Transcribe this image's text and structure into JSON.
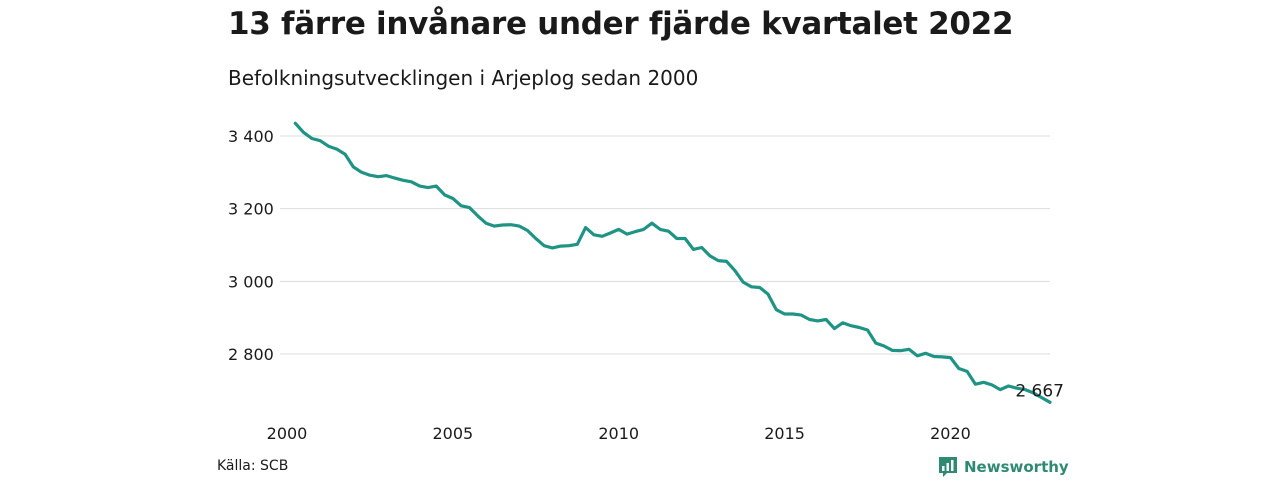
{
  "title": "13 färre invånare under fjärde kvartalet 2022",
  "subtitle": "Befolkningsutvecklingen i Arjeplog sedan 2000",
  "source": "Källa: SCB",
  "brand": "Newsworthy",
  "colors": {
    "line": "#1f9384",
    "grid": "#dddddd",
    "brand": "#2f8a74"
  },
  "chart_data": {
    "type": "line",
    "ylim": [
      2660,
      3440
    ],
    "xlim": [
      2000,
      2023.0
    ],
    "y_ticks": [
      {
        "value": 2800,
        "label": "2 800"
      },
      {
        "value": 3000,
        "label": "3 000"
      },
      {
        "value": 3200,
        "label": "3 200"
      },
      {
        "value": 3400,
        "label": "3 400"
      }
    ],
    "x_ticks": [
      {
        "value": 2000,
        "label": "2000"
      },
      {
        "value": 2005,
        "label": "2005"
      },
      {
        "value": 2010,
        "label": "2010"
      },
      {
        "value": 2015,
        "label": "2015"
      },
      {
        "value": 2020,
        "label": "2020"
      }
    ],
    "grid": true,
    "end_label": "2 667",
    "series": [
      {
        "x": [
          2000.25,
          2000.5,
          2000.75,
          2001.0,
          2001.25,
          2001.5,
          2001.75,
          2002.0,
          2002.25,
          2002.5,
          2002.75,
          2003.0,
          2003.25,
          2003.5,
          2003.75,
          2004.0,
          2004.25,
          2004.5,
          2004.75,
          2005.0,
          2005.25,
          2005.5,
          2005.75,
          2006.0,
          2006.25,
          2006.5,
          2006.75,
          2007.0,
          2007.25,
          2007.5,
          2007.75,
          2008.0,
          2008.25,
          2008.5,
          2008.75,
          2009.0,
          2009.25,
          2009.5,
          2009.75,
          2010.0,
          2010.25,
          2010.5,
          2010.75,
          2011.0,
          2011.25,
          2011.5,
          2011.75,
          2012.0,
          2012.25,
          2012.5,
          2012.75,
          2013.0,
          2013.25,
          2013.5,
          2013.75,
          2014.0,
          2014.25,
          2014.5,
          2014.75,
          2015.0,
          2015.25,
          2015.5,
          2015.75,
          2016.0,
          2016.25,
          2016.5,
          2016.75,
          2017.0,
          2017.25,
          2017.5,
          2017.75,
          2018.0,
          2018.25,
          2018.5,
          2018.75,
          2019.0,
          2019.25,
          2019.5,
          2019.75,
          2020.0,
          2020.25,
          2020.5,
          2020.75,
          2021.0,
          2021.25,
          2021.5,
          2021.75,
          2022.0,
          2022.25,
          2022.5,
          2022.75,
          2023.0
        ],
        "values": [
          3435,
          3410,
          3393,
          3387,
          3372,
          3364,
          3350,
          3315,
          3300,
          3292,
          3288,
          3291,
          3284,
          3278,
          3274,
          3262,
          3258,
          3262,
          3238,
          3228,
          3208,
          3203,
          3180,
          3160,
          3152,
          3155,
          3156,
          3152,
          3140,
          3118,
          3098,
          3092,
          3097,
          3098,
          3102,
          3148,
          3128,
          3124,
          3133,
          3143,
          3130,
          3137,
          3143,
          3160,
          3143,
          3138,
          3118,
          3118,
          3088,
          3093,
          3070,
          3057,
          3055,
          3030,
          2998,
          2985,
          2983,
          2965,
          2922,
          2910,
          2910,
          2907,
          2895,
          2891,
          2895,
          2870,
          2886,
          2878,
          2873,
          2866,
          2830,
          2822,
          2810,
          2809,
          2813,
          2795,
          2802,
          2793,
          2792,
          2790,
          2760,
          2752,
          2717,
          2722,
          2715,
          2702,
          2712,
          2706,
          2702,
          2693,
          2680,
          2667
        ]
      }
    ]
  }
}
